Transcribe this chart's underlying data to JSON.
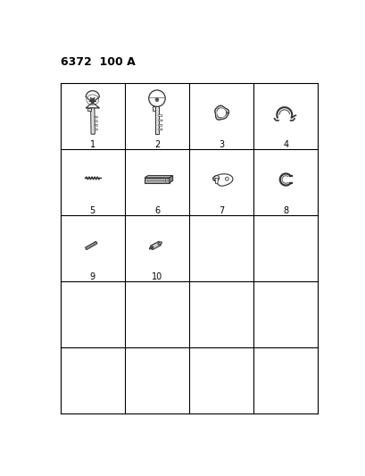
{
  "title": "6372  100 A",
  "background_color": "#ffffff",
  "grid_rows": 5,
  "grid_cols": 4,
  "items": [
    {
      "id": 1,
      "row": 0,
      "col": 0,
      "label": "1"
    },
    {
      "id": 2,
      "row": 0,
      "col": 1,
      "label": "2"
    },
    {
      "id": 3,
      "row": 0,
      "col": 2,
      "label": "3"
    },
    {
      "id": 4,
      "row": 0,
      "col": 3,
      "label": "4"
    },
    {
      "id": 5,
      "row": 1,
      "col": 0,
      "label": "5"
    },
    {
      "id": 6,
      "row": 1,
      "col": 1,
      "label": "6"
    },
    {
      "id": 7,
      "row": 1,
      "col": 2,
      "label": "7"
    },
    {
      "id": 8,
      "row": 1,
      "col": 3,
      "label": "8"
    },
    {
      "id": 9,
      "row": 2,
      "col": 0,
      "label": "9"
    },
    {
      "id": 10,
      "row": 2,
      "col": 1,
      "label": "10"
    }
  ],
  "line_color": "#000000",
  "label_fontsize": 7,
  "title_fontsize": 9,
  "gx0": 0.2,
  "gy0": 0.15,
  "gx1": 3.95,
  "gy1": 4.95
}
